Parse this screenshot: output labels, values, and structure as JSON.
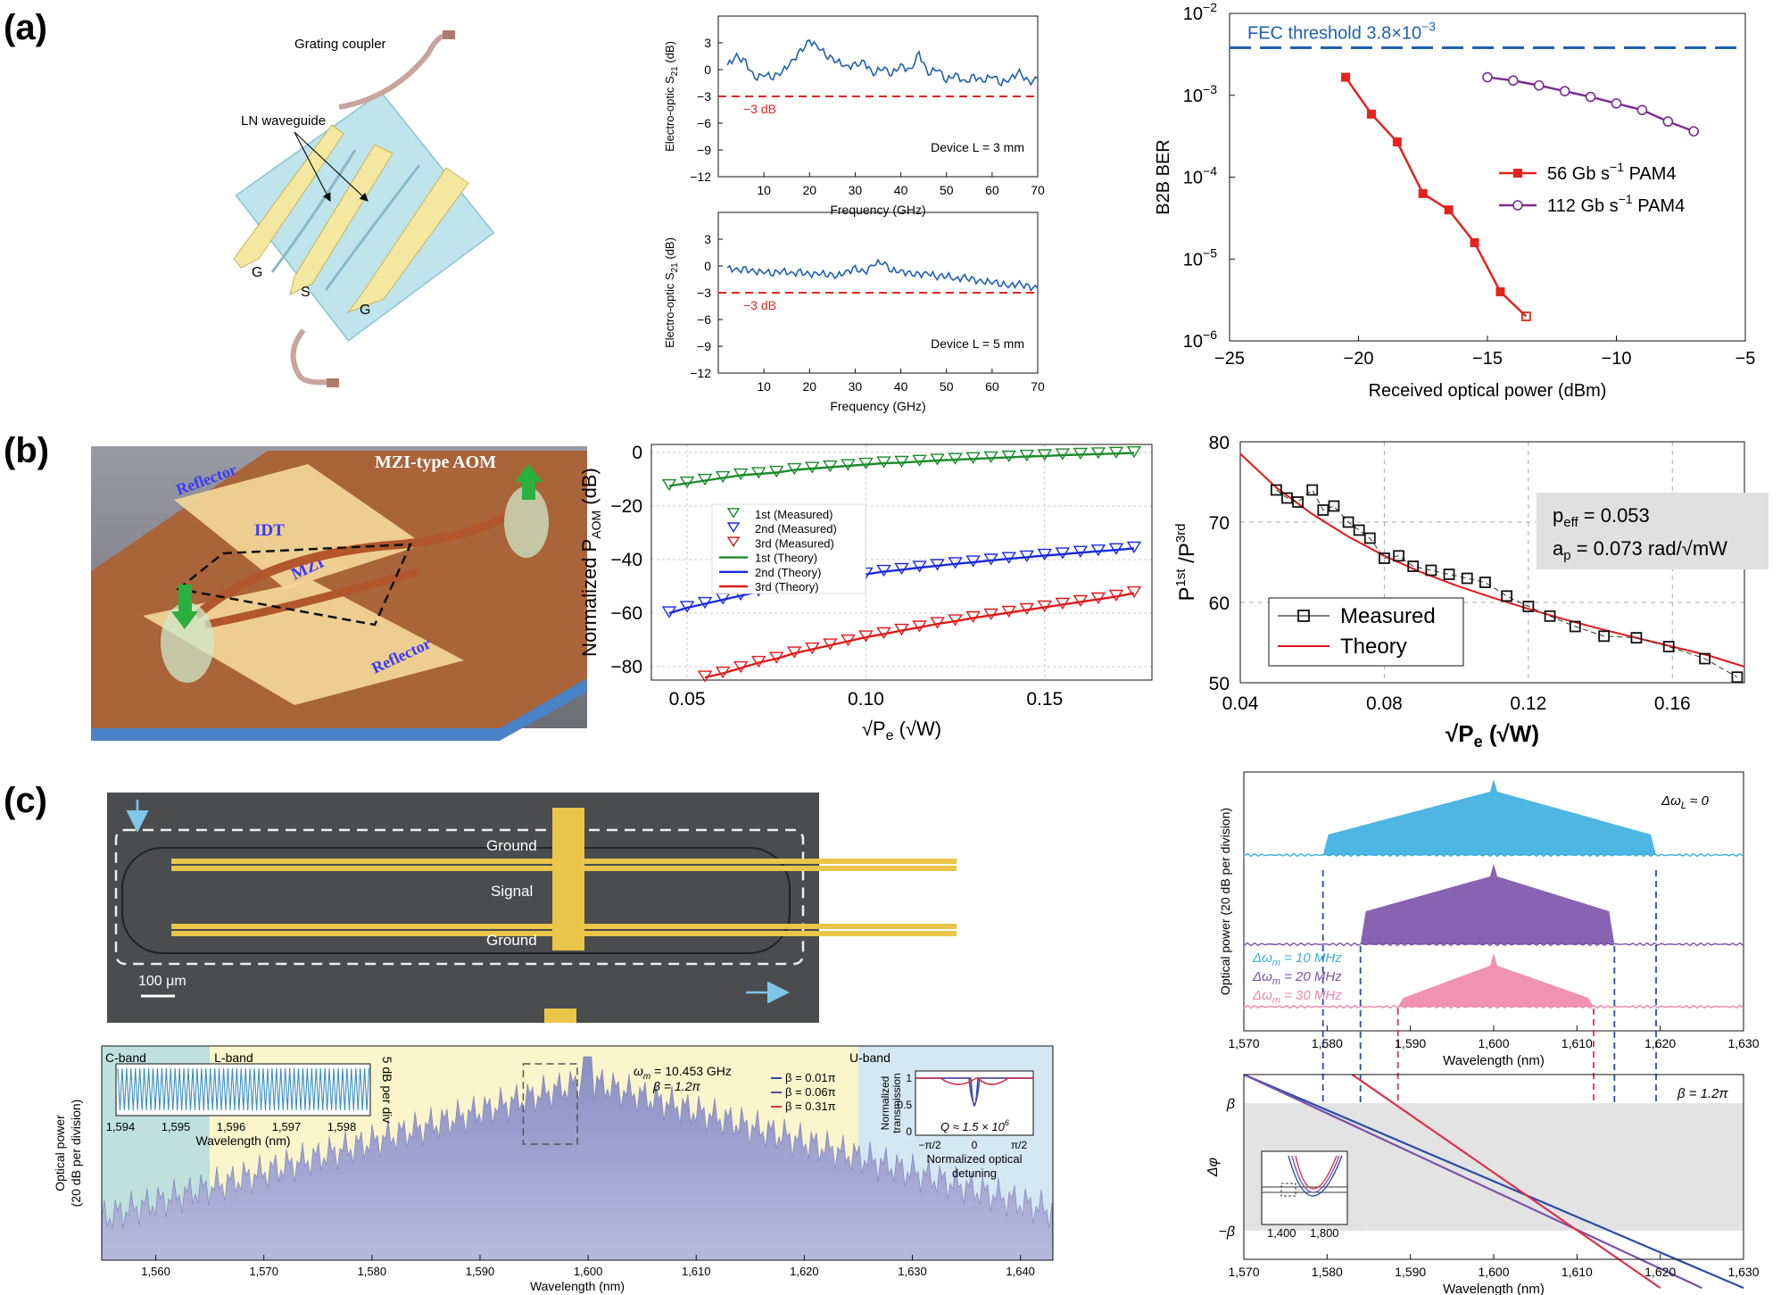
{
  "panels": {
    "a": "(a)",
    "b": "(b)",
    "c": "(c)"
  },
  "device_a": {
    "grating_coupler": "Grating coupler",
    "ln_waveguide": "LN waveguide",
    "g_left": "G",
    "s": "S",
    "g_right": "G"
  },
  "device_b": {
    "title": "MZI-type AOM",
    "reflector_top": "Reflector",
    "idt": "IDT",
    "mzi": "MZI",
    "reflector_bottom": "Reflector"
  },
  "device_c": {
    "ground_top": "Ground",
    "signal": "Signal",
    "ground_bottom": "Ground",
    "scale_bar": "100 μm"
  },
  "chart_data": [
    {
      "id": "a-eo-3mm",
      "type": "line",
      "xlabel": "Frequency (GHz)",
      "ylabel": "Electro-optic S21 (dB)",
      "xlim": [
        0,
        70
      ],
      "ylim": [
        -12,
        6
      ],
      "xticks": [
        "10",
        "20",
        "30",
        "40",
        "50",
        "60",
        "70"
      ],
      "yticks": [
        "3",
        "0",
        "−3",
        "−6",
        "−9",
        "−12"
      ],
      "threshold": -3,
      "threshold_label": "−3 dB",
      "annotation": "Device L = 3 mm",
      "series": [
        {
          "name": "S21",
          "color": "#1f5fb0",
          "x": [
            2,
            4,
            6,
            8,
            10,
            12,
            14,
            16,
            18,
            20,
            22,
            24,
            26,
            28,
            30,
            32,
            34,
            36,
            38,
            40,
            42,
            44,
            46,
            48,
            50,
            52,
            54,
            56,
            58,
            60,
            62,
            64,
            66,
            68,
            70
          ],
          "y": [
            0.5,
            1.5,
            0.8,
            -1.0,
            -0.5,
            -0.8,
            -0.2,
            0.8,
            2.0,
            3.2,
            2.5,
            1.5,
            1.0,
            0.3,
            0.5,
            0.8,
            -0.5,
            0.3,
            -0.5,
            0.5,
            -0.2,
            1.8,
            -0.5,
            0.2,
            -1.2,
            -0.5,
            -1.5,
            -0.8,
            -1.3,
            -0.6,
            -1.5,
            -1.0,
            -0.3,
            -1.5,
            -1.0
          ]
        }
      ]
    },
    {
      "id": "a-eo-5mm",
      "type": "line",
      "xlabel": "Frequency (GHz)",
      "ylabel": "Electro-optic S21 (dB)",
      "xlim": [
        0,
        70
      ],
      "ylim": [
        -12,
        6
      ],
      "xticks": [
        "10",
        "20",
        "30",
        "40",
        "50",
        "60",
        "70"
      ],
      "yticks": [
        "3",
        "0",
        "−3",
        "−6",
        "−9",
        "−12"
      ],
      "threshold": -3,
      "threshold_label": "−3 dB",
      "annotation": "Device L = 5 mm",
      "series": [
        {
          "name": "S21",
          "color": "#1f5fb0",
          "x": [
            2,
            4,
            6,
            8,
            10,
            12,
            14,
            16,
            18,
            20,
            22,
            24,
            26,
            28,
            30,
            32,
            34,
            36,
            38,
            40,
            42,
            44,
            46,
            48,
            50,
            52,
            54,
            56,
            58,
            60,
            62,
            64,
            66,
            68,
            70
          ],
          "y": [
            -0.2,
            -0.5,
            -0.4,
            -0.7,
            -0.6,
            -0.8,
            -0.5,
            -0.9,
            -0.7,
            -1.0,
            -0.8,
            -0.9,
            -1.1,
            -0.7,
            -0.3,
            -0.8,
            0.2,
            0.5,
            -0.5,
            -0.6,
            -0.9,
            -1.0,
            -0.8,
            -1.2,
            -1.0,
            -1.5,
            -1.3,
            -1.6,
            -1.8,
            -1.7,
            -2.0,
            -2.2,
            -2.0,
            -2.4,
            -2.5
          ]
        }
      ]
    },
    {
      "id": "a-ber",
      "type": "line",
      "xlabel": "Received optical power (dBm)",
      "ylabel": "B2B BER",
      "xlim": [
        -25,
        -5
      ],
      "ylim_log": [
        -6,
        -2
      ],
      "xticks": [
        "−25",
        "−20",
        "−15",
        "−10",
        "−5"
      ],
      "yticks": [
        "10",
        "10",
        "10",
        "10",
        "10"
      ],
      "ytick_exponents": [
        "−2",
        "−3",
        "−4",
        "−5",
        "−6"
      ],
      "fec_label": "FEC threshold  3.8×10",
      "fec_exponent": "−3",
      "fec_value_log": -2.42,
      "series": [
        {
          "name": "56 Gb s",
          "unit": "−1",
          "suffix": " PAM4",
          "color": "#e3231e",
          "marker": "square",
          "x": [
            -20.5,
            -19.5,
            -18.5,
            -17.5,
            -16.5,
            -15.5,
            -14.5,
            -13.5
          ],
          "ylog": [
            -2.78,
            -3.23,
            -3.57,
            -4.2,
            -4.4,
            -4.8,
            -5.4,
            -5.7
          ]
        },
        {
          "name": "112 Gb s",
          "unit": "−1",
          "suffix": " PAM4",
          "color": "#7b2d8e",
          "marker": "circle",
          "x": [
            -15,
            -14,
            -13,
            -12,
            -11,
            -10,
            -9,
            -8,
            -7
          ],
          "ylog": [
            -2.78,
            -2.82,
            -2.88,
            -2.95,
            -3.02,
            -3.1,
            -3.18,
            -3.32,
            -3.44
          ]
        }
      ]
    },
    {
      "id": "b-paom",
      "type": "scatter",
      "xlabel": "√P",
      "xlabel_sub": "e",
      "xlabel_unit": " (√W)",
      "ylabel": "Normalized  P",
      "ylabel_sub": "AOM",
      "ylabel_unit": " (dB)",
      "xlim": [
        0.04,
        0.18
      ],
      "ylim": [
        -85,
        3
      ],
      "xticks": [
        "0.05",
        "0.10",
        "0.15"
      ],
      "xtick_values": [
        0.05,
        0.1,
        0.15
      ],
      "yticks": [
        "0",
        "−20",
        "−40",
        "−60",
        "−80"
      ],
      "ytick_values": [
        0,
        -20,
        -40,
        -60,
        -80
      ],
      "legend": [
        "1st (Measured)",
        "2nd (Measured)",
        "3rd (Measured)",
        "1st (Theory)",
        "2nd (Theory)",
        "3rd (Theory)"
      ],
      "series": [
        {
          "name": "1st",
          "color": "#1a8a2a",
          "theory": "0 + 20*log10(x/0.18)",
          "x": [
            0.045,
            0.05,
            0.055,
            0.06,
            0.065,
            0.07,
            0.075,
            0.08,
            0.085,
            0.09,
            0.095,
            0.1,
            0.105,
            0.11,
            0.115,
            0.12,
            0.125,
            0.13,
            0.135,
            0.14,
            0.145,
            0.15,
            0.155,
            0.16,
            0.165,
            0.17,
            0.175
          ],
          "y": [
            -12.5,
            -11.5,
            -10.5,
            -9.5,
            -8.5,
            -8,
            -7.5,
            -6.5,
            -6,
            -5.5,
            -5,
            -4.5,
            -4,
            -3.8,
            -3.4,
            -3,
            -2.7,
            -2.4,
            -2.1,
            -1.8,
            -1.5,
            -1.3,
            -1,
            -0.8,
            -0.6,
            -0.4,
            -0.2
          ]
        },
        {
          "name": "2nd",
          "color": "#1a2ad8",
          "x": [
            0.045,
            0.05,
            0.055,
            0.06,
            0.065,
            0.07,
            0.075,
            0.08,
            0.085,
            0.09,
            0.095,
            0.1,
            0.105,
            0.11,
            0.115,
            0.12,
            0.125,
            0.13,
            0.135,
            0.14,
            0.145,
            0.15,
            0.155,
            0.16,
            0.165,
            0.17,
            0.175
          ],
          "y": [
            -60,
            -58,
            -56.5,
            -55,
            -53.5,
            -52,
            -51,
            -49.5,
            -48.5,
            -47.5,
            -46.5,
            -45.5,
            -44.5,
            -43.8,
            -43,
            -42.3,
            -41.6,
            -41,
            -40.3,
            -39.7,
            -39.1,
            -38.5,
            -38,
            -37.4,
            -36.9,
            -36.4,
            -35.8
          ]
        },
        {
          "name": "3rd",
          "color": "#e01818",
          "x": [
            0.055,
            0.06,
            0.065,
            0.07,
            0.075,
            0.08,
            0.085,
            0.09,
            0.095,
            0.1,
            0.105,
            0.11,
            0.115,
            0.12,
            0.125,
            0.13,
            0.135,
            0.14,
            0.145,
            0.15,
            0.155,
            0.16,
            0.165,
            0.17,
            0.175
          ],
          "y": [
            -84,
            -82.5,
            -80.5,
            -78.5,
            -77,
            -75,
            -73.5,
            -72,
            -70.5,
            -69,
            -67.8,
            -66.5,
            -65.3,
            -64,
            -63,
            -61.8,
            -60.8,
            -59.8,
            -58.8,
            -57.8,
            -56.8,
            -55.8,
            -54.8,
            -53.8,
            -52.5
          ]
        }
      ]
    },
    {
      "id": "b-ratio",
      "type": "scatter",
      "xlabel": "√P",
      "xlabel_sub": "e",
      "xlabel_unit": " (√W)",
      "ylabel": "P",
      "ylabel_sup1": "1st",
      "ylabel_mid": " /P",
      "ylabel_sup2": "3rd",
      "xlim": [
        0.04,
        0.18
      ],
      "ylim": [
        50,
        80
      ],
      "xticks": [
        "0.04",
        "0.08",
        "0.12",
        "0.16"
      ],
      "xtick_values": [
        0.04,
        0.08,
        0.12,
        0.16
      ],
      "yticks": [
        "80",
        "70",
        "60",
        "50"
      ],
      "ytick_values": [
        80,
        70,
        60,
        50
      ],
      "box_line1": "p",
      "box_line1_sub": "eff",
      "box_line1_val": " = 0.053",
      "box_line2": "a",
      "box_line2_sub": "p",
      "box_line2_val": " = 0.073 rad/√mW",
      "legend": [
        "Measured",
        "Theory"
      ],
      "series": [
        {
          "name": "Measured",
          "color": "#111",
          "x": [
            0.05,
            0.053,
            0.056,
            0.06,
            0.063,
            0.066,
            0.07,
            0.073,
            0.076,
            0.08,
            0.084,
            0.088,
            0.093,
            0.098,
            0.103,
            0.108,
            0.114,
            0.12,
            0.126,
            0.133,
            0.141,
            0.15,
            0.159,
            0.169,
            0.178
          ],
          "y": [
            74,
            73,
            72.5,
            74,
            71.5,
            72,
            70,
            69,
            68,
            65.5,
            65.8,
            64.5,
            64,
            63.5,
            63,
            62.5,
            60.8,
            59.5,
            58.3,
            57,
            55.8,
            55.6,
            54.5,
            53,
            50.7
          ]
        },
        {
          "name": "Theory",
          "color": "#e01818",
          "x": [
            0.04,
            0.05,
            0.06,
            0.07,
            0.08,
            0.09,
            0.1,
            0.11,
            0.12,
            0.13,
            0.14,
            0.15,
            0.16,
            0.17,
            0.18
          ],
          "y": [
            78.5,
            74.3,
            71,
            68.2,
            65.8,
            63.8,
            62.1,
            60.6,
            59.2,
            57.9,
            56.7,
            55.6,
            54.5,
            53.4,
            52
          ]
        }
      ]
    },
    {
      "id": "c-comb",
      "type": "area",
      "xlabel": "Wavelength (nm)",
      "ylabel": "Optical power",
      "ylabel2": "(20 dB per division)",
      "xlim": [
        1555,
        1643
      ],
      "xticks": [
        "1,560",
        "1,570",
        "1,580",
        "1,590",
        "1,600",
        "1,610",
        "1,620",
        "1,630",
        "1,640"
      ],
      "xtick_values": [
        1560,
        1570,
        1580,
        1590,
        1600,
        1610,
        1620,
        1630,
        1640
      ],
      "bands": [
        "C-band",
        "L-band",
        "U-band"
      ],
      "band_edges": [
        1555,
        1565,
        1625,
        1643
      ],
      "omega": "ω",
      "omega_sub": "m",
      "omega_val": " = 10.453 GHz",
      "beta_text": "β = 1.2π",
      "inset1": {
        "xlabel": "Wavelength (nm)",
        "ylabel": "5 dB per div",
        "xticks": [
          "1,594",
          "1,595",
          "1,596",
          "1,597",
          "1,598"
        ]
      },
      "inset2": {
        "legend": [
          "β = 0.01π",
          "β = 0.06π",
          "β = 0.31π"
        ],
        "legend_colors": [
          "#2a4ca8",
          "#5a4a9c",
          "#d8324a"
        ],
        "ylabel": "Normalized",
        "ylabel2": "transmission",
        "yticks": [
          "1",
          "0.5",
          "0"
        ],
        "xticks": [
          "−π/2",
          "0",
          "π/2"
        ],
        "xlabel": "Normalized optical",
        "xlabel2": "detuning",
        "q": "Q ≈ 1.5 × 10",
        "q_exp": "6"
      }
    },
    {
      "id": "c-spectra",
      "type": "area",
      "xlabel": "Wavelength (nm)",
      "ylabel": "Optical power (20 dB per division)",
      "xlim": [
        1570,
        1630
      ],
      "xticks": [
        "1,570",
        "1,580",
        "1,590",
        "1,600",
        "1,610",
        "1,620",
        "1,630"
      ],
      "xtick_values": [
        1570,
        1580,
        1590,
        1600,
        1610,
        1620,
        1630
      ],
      "top_label": "Δω",
      "top_label_sub": "L",
      "top_label_val": " ≈ 0",
      "series": [
        {
          "name": "Δω",
          "sub": "m",
          "val": " = 10 MHz",
          "color": "#3aaee0",
          "range": [
            1579.5,
            1619.5
          ]
        },
        {
          "name": "Δω",
          "sub": "m",
          "val": " = 20 MHz",
          "color": "#7a52a8",
          "range": [
            1584,
            1614.5
          ]
        },
        {
          "name": "Δω",
          "sub": "m",
          "val": " = 30 MHz",
          "color": "#ee86a8",
          "range": [
            1588.5,
            1612
          ]
        }
      ]
    },
    {
      "id": "c-phase",
      "type": "line",
      "xlabel": "Wavelength (nm)",
      "ylabel": "Δφ",
      "xlim": [
        1570,
        1630
      ],
      "xticks": [
        "1,570",
        "1,580",
        "1,590",
        "1,600",
        "1,610",
        "1,620",
        "1,630"
      ],
      "xtick_values": [
        1570,
        1580,
        1590,
        1600,
        1610,
        1620,
        1630
      ],
      "yticks": [
        "β",
        "−β"
      ],
      "beta_text": "β = 1.2π",
      "inset_xticks": [
        "1,400",
        "1,800"
      ],
      "lines": [
        {
          "color": "#2a4ca8",
          "x": [
            1570,
            1630
          ],
          "y": [
            1.45,
            -1.9
          ]
        },
        {
          "color": "#7a52a8",
          "x": [
            1570,
            1625
          ],
          "y": [
            1.45,
            -1.9
          ]
        },
        {
          "color": "#d8324a",
          "x": [
            1583,
            1620
          ],
          "y": [
            1.45,
            -1.9
          ]
        }
      ]
    }
  ]
}
